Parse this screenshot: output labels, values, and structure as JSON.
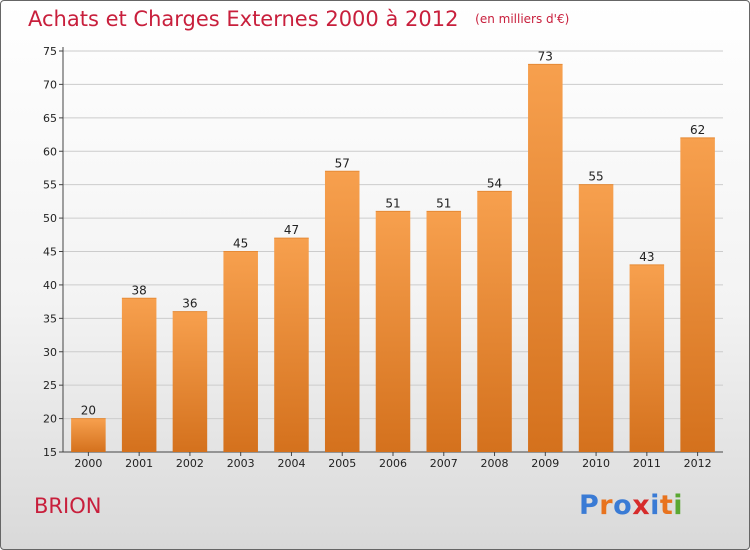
{
  "header": {
    "title": "Achats et Charges Externes 2000 à 2012",
    "unit": "(en milliers d'€)"
  },
  "footer": {
    "town": "BRION",
    "logo": "Proxiti",
    "logo_letters": [
      "P",
      "r",
      "o",
      "x",
      "i",
      "t",
      "i"
    ]
  },
  "colors": {
    "bar_top": "#f7a04e",
    "bar_bottom": "#d4711d",
    "title": "#c81f3c",
    "grid": "#cccccc"
  },
  "chart_data": {
    "type": "bar",
    "title": "Achats et Charges Externes 2000 à 2012",
    "subtitle": "(en milliers d'€)",
    "xlabel": "",
    "ylabel": "",
    "categories": [
      "2000",
      "2001",
      "2002",
      "2003",
      "2004",
      "2005",
      "2006",
      "2007",
      "2008",
      "2009",
      "2010",
      "2011",
      "2012"
    ],
    "values": [
      20,
      38,
      36,
      45,
      47,
      57,
      51,
      51,
      54,
      73,
      55,
      43,
      62
    ],
    "ylim": [
      15,
      75
    ],
    "yticks": [
      15,
      20,
      25,
      30,
      35,
      40,
      45,
      50,
      55,
      60,
      65,
      70,
      75
    ],
    "grid": true,
    "data_labels": true
  }
}
